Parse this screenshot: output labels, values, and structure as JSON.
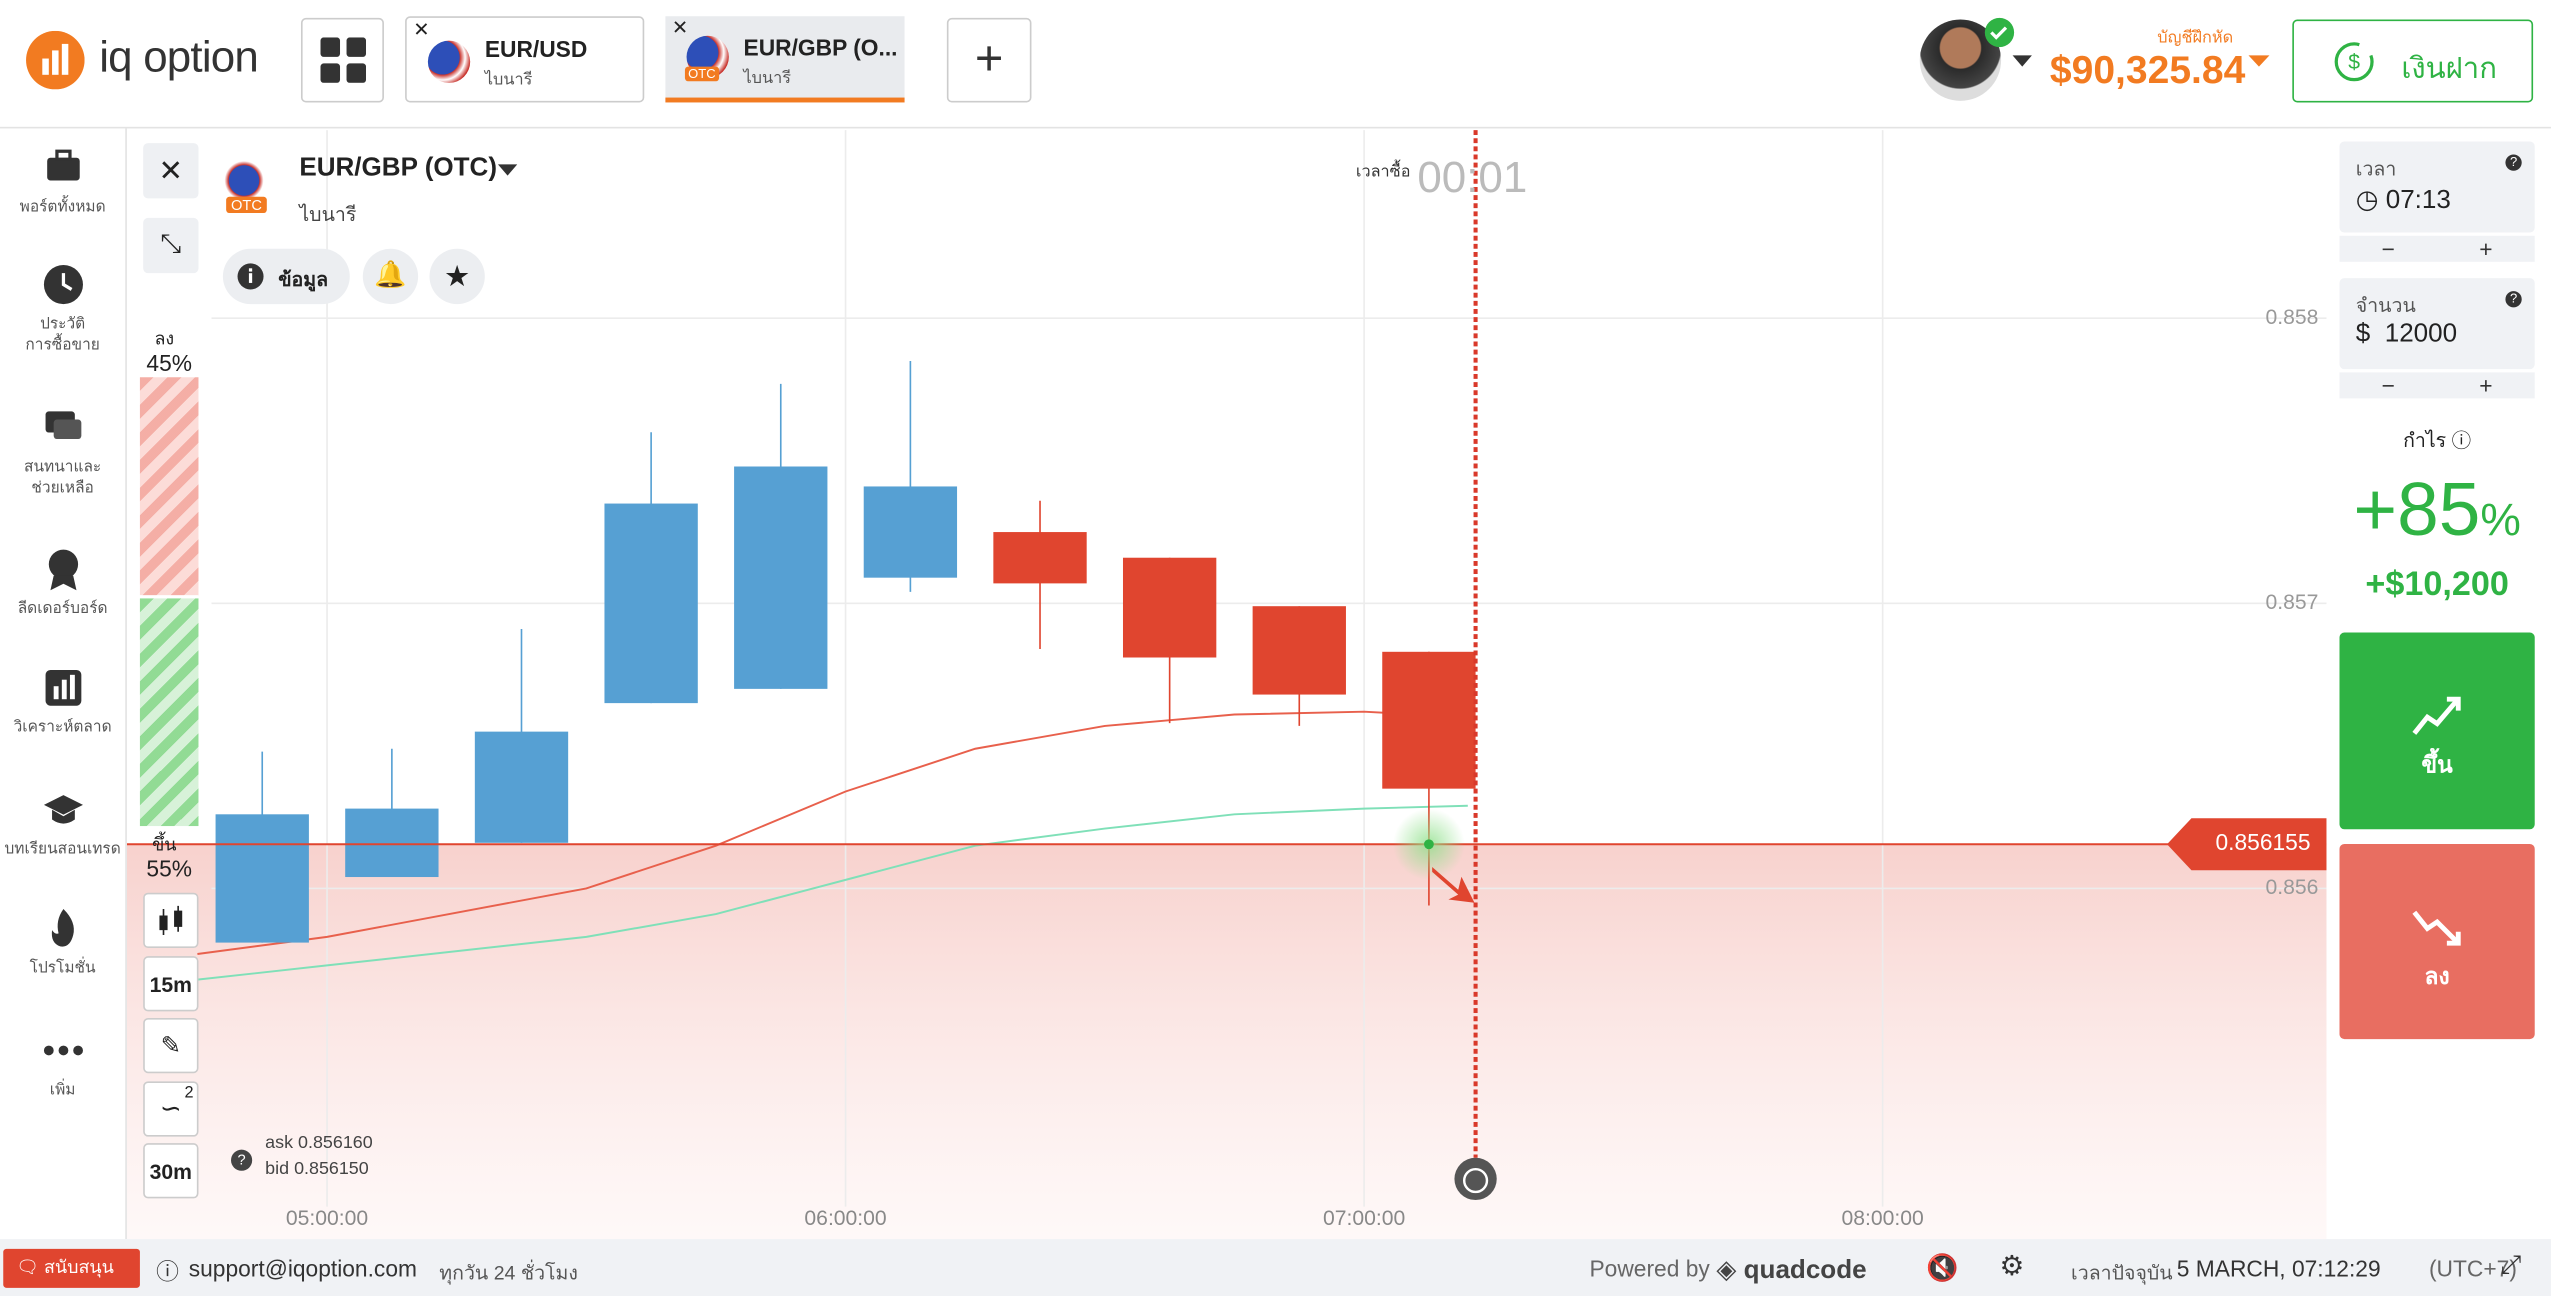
{
  "header": {
    "logo": "iq option",
    "tabs": [
      {
        "title": "EUR/USD",
        "subtitle": "ไบนารี"
      },
      {
        "title": "EUR/GBP (O...",
        "subtitle": "ไบนารี",
        "badge": "OTC"
      }
    ],
    "account_label": "บัญชีฝึกหัด",
    "balance": "$90,325.84",
    "deposit": "เงินฝาก"
  },
  "sidebar": {
    "items": [
      {
        "lines": [
          "พอร์ตทั้งหมด"
        ]
      },
      {
        "lines": [
          "ประวัติ",
          "การซื้อขาย"
        ]
      },
      {
        "lines": [
          "สนทนาและ",
          "ช่วยเหลือ"
        ]
      },
      {
        "lines": [
          "ลีดเดอร์บอร์ด"
        ]
      },
      {
        "lines": [
          "วิเคราะห์ตลาด"
        ]
      },
      {
        "lines": [
          "บทเรียนสอนเทรด"
        ]
      },
      {
        "lines": [
          "โปรโมชั่น"
        ]
      },
      {
        "lines": [
          "เพิ่ม"
        ]
      }
    ]
  },
  "asset": {
    "name": "EUR/GBP (OTC)",
    "badge": "OTC",
    "type": "ไบนารี",
    "info": "ข้อมูล"
  },
  "sentiment": {
    "down_label": "ลง",
    "down_pct": "45%",
    "up_label": "ขึ้น",
    "up_pct": "55%"
  },
  "tools": {
    "indicator_count": "2",
    "candle_period": "15m",
    "timeframe": "30m"
  },
  "quote": {
    "ask_label": "ask",
    "ask": "0.856160",
    "bid_label": "bid",
    "bid": "0.856150"
  },
  "chart_data": {
    "type": "candlestick",
    "x": [
      4.875,
      5.125,
      5.375,
      5.625,
      5.875,
      6.125,
      6.375,
      6.625,
      6.875,
      7.125
    ],
    "open": [
      0.85581,
      0.85604,
      0.85616,
      0.85665,
      0.8567,
      0.85709,
      0.85725,
      0.85716,
      0.85699,
      0.85683
    ],
    "high": [
      0.85648,
      0.85649,
      0.85691,
      0.8576,
      0.85777,
      0.85785,
      0.85736,
      0.85716,
      0.85699,
      0.85683
    ],
    "low": [
      0.85581,
      0.85604,
      0.85616,
      0.85665,
      0.8567,
      0.85704,
      0.85684,
      0.85658,
      0.85657,
      0.85594
    ],
    "close": [
      0.85626,
      0.85628,
      0.85655,
      0.85735,
      0.85748,
      0.85741,
      0.85707,
      0.85681,
      0.85668,
      0.85635
    ],
    "up_color": "#56a0d3",
    "down_color": "#e0452f",
    "lines": [
      {
        "color": "#e8604c",
        "x": [
          4.75,
          5,
          5.5,
          5.75,
          6,
          6.25,
          6.5,
          6.75,
          7,
          7.2
        ],
        "values": [
          0.85577,
          0.85583,
          0.856,
          0.85615,
          0.85634,
          0.85649,
          0.85657,
          0.85661,
          0.85662,
          0.8566
        ]
      },
      {
        "color": "#7fe0b8",
        "x": [
          4.75,
          5,
          5.5,
          5.75,
          6,
          6.25,
          6.5,
          6.75,
          7,
          7.2
        ],
        "values": [
          0.85568,
          0.85573,
          0.85583,
          0.85591,
          0.85603,
          0.85615,
          0.85621,
          0.85626,
          0.85628,
          0.85629
        ]
      }
    ],
    "current_price": 0.856155,
    "expiry_x": 7.215,
    "purchase_label": "เวลาซื้อ",
    "countdown": "00:01",
    "xlim": [
      4.614,
      8.856
    ],
    "ylim": [
      0.85477,
      0.85866
    ],
    "xticks": [
      {
        "value": 5,
        "label": "05:00:00"
      },
      {
        "value": 6,
        "label": "06:00:00"
      },
      {
        "value": 7,
        "label": "07:00:00"
      },
      {
        "value": 8,
        "label": "08:00:00"
      }
    ],
    "yticks": [
      0.856,
      0.857,
      0.858
    ],
    "grid": true
  },
  "trade": {
    "time_label": "เวลา",
    "time": "07:13",
    "amount_label": "จำนวน",
    "currency": "$",
    "amount": "12000",
    "profit_label": "กำไร",
    "profit_pct": "+85",
    "profit_unit": "%",
    "profit_amount": "+$10,200",
    "up": "ขึ้น",
    "down": "ลง"
  },
  "footer": {
    "chat": "สนับสนุน",
    "email": "support@iqoption.com",
    "hours": "ทุกวัน 24 ชั่วโมง",
    "powered": "Powered by",
    "brand": "quadcode",
    "time_label": "เวลาปัจจุบัน",
    "time": "5 MARCH, 07:12:29",
    "timezone": "(UTC+7)"
  }
}
